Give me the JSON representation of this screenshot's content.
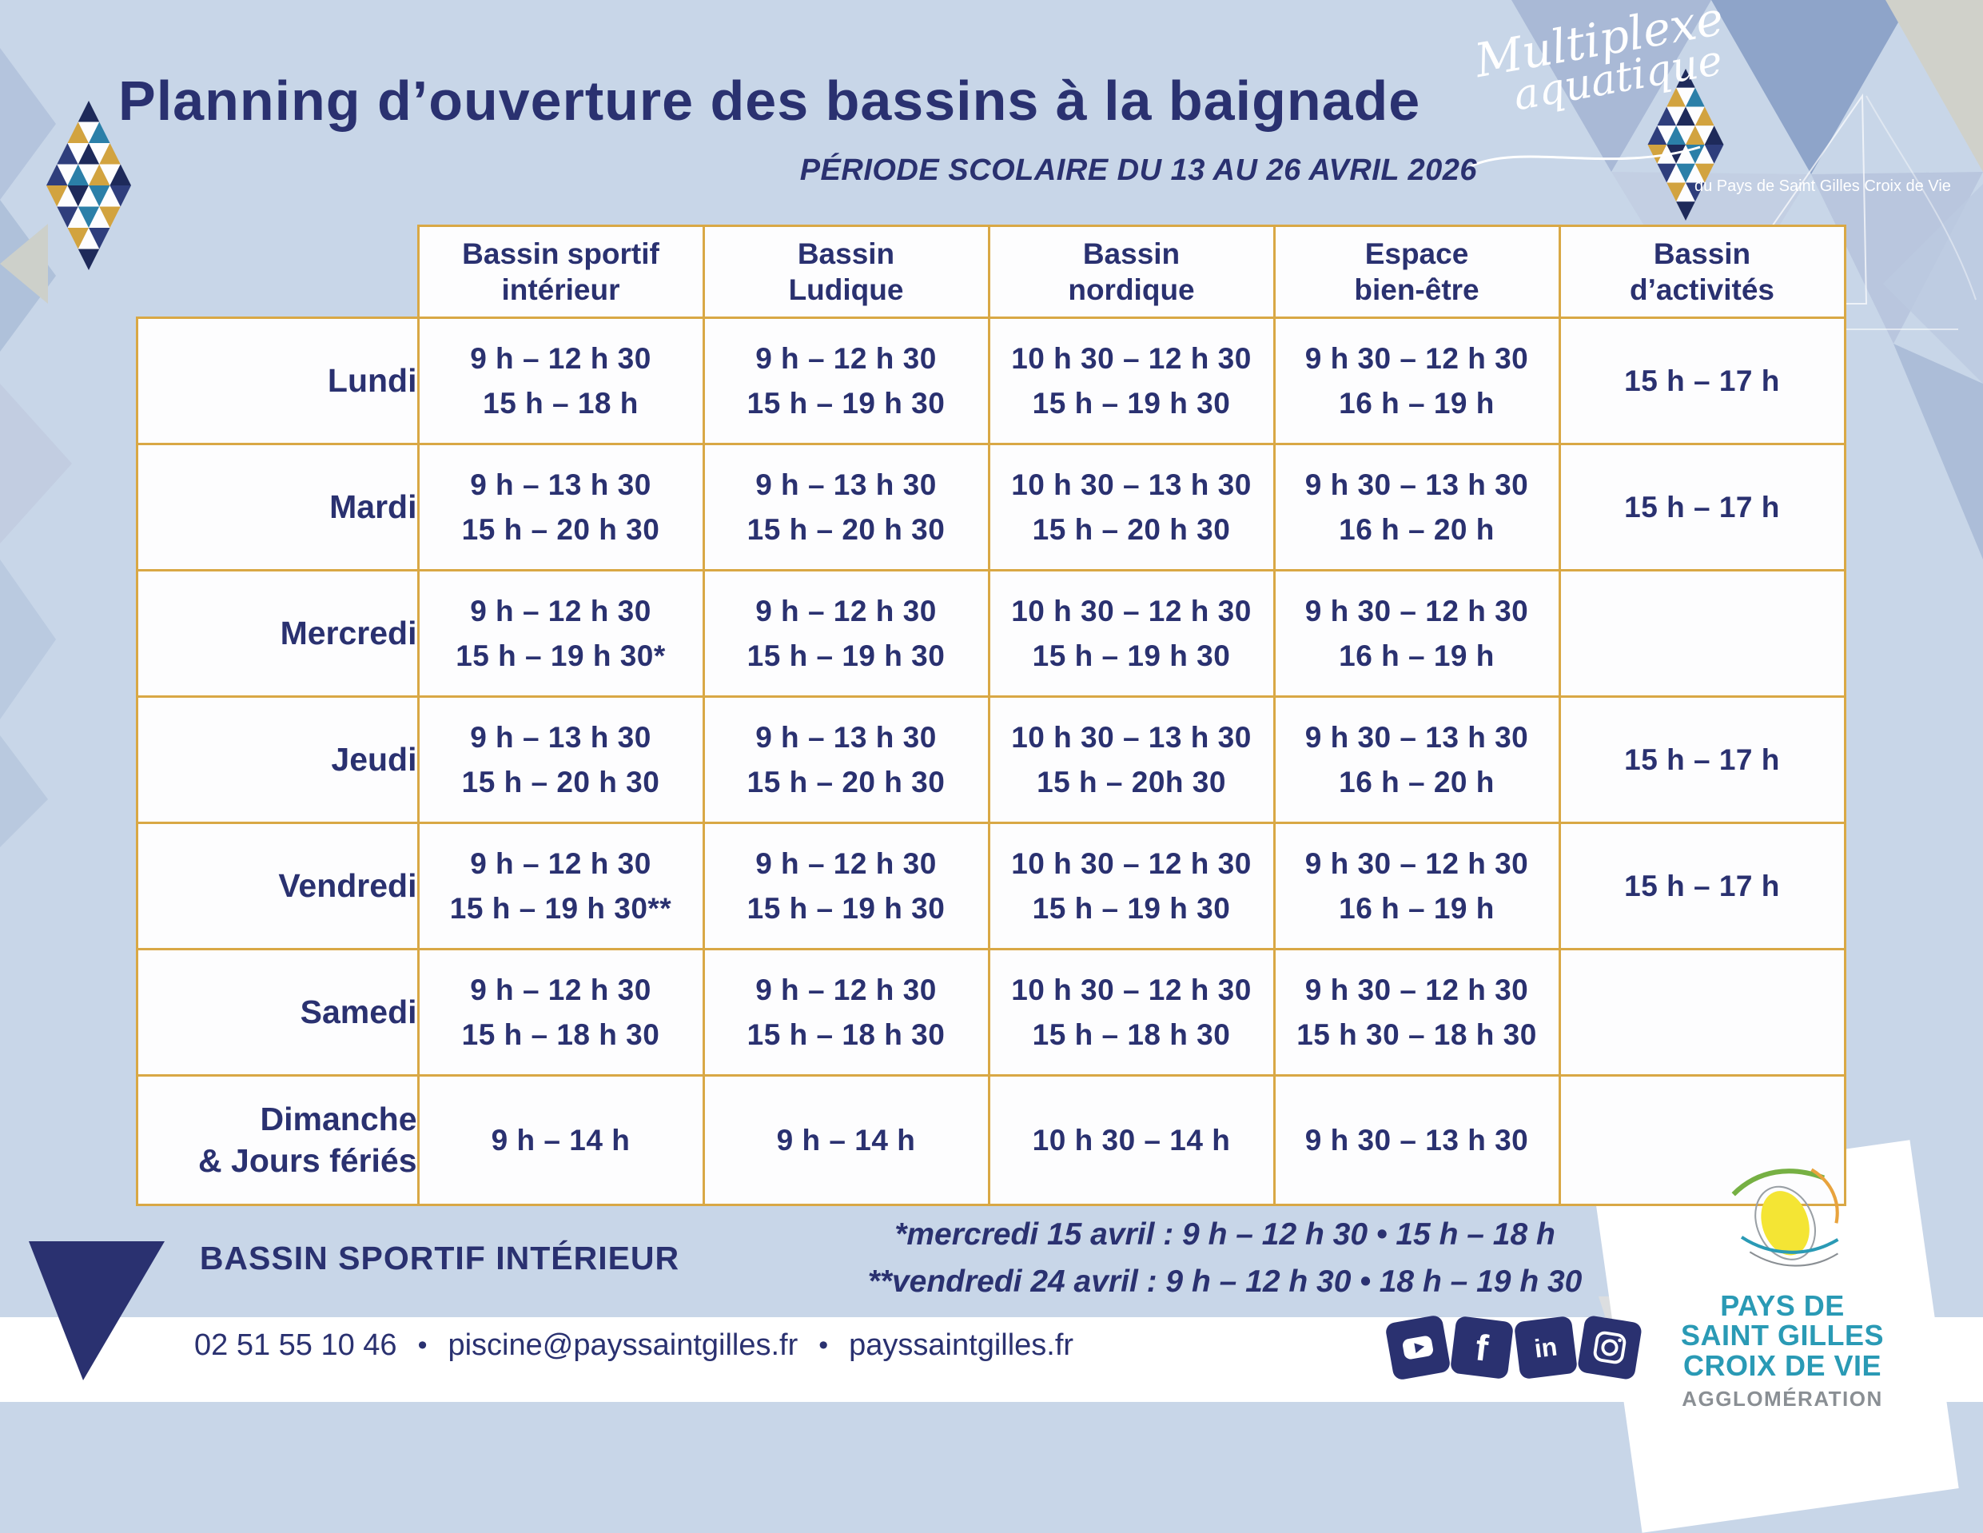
{
  "page": {
    "title": "Planning d’ouverture des bassins à la baignade",
    "subtitle": "PÉRIODE SCOLAIRE DU 13 AU 26 AVRIL 2026"
  },
  "brand": {
    "name_line1": "Multiplexe",
    "name_line2": "aquatique",
    "tagline": "du Pays de Saint Gilles Croix de Vie"
  },
  "table": {
    "columns": [
      [
        "Bassin sportif",
        "intérieur"
      ],
      [
        "Bassin",
        "Ludique"
      ],
      [
        "Bassin",
        "nordique"
      ],
      [
        "Espace",
        "bien-être"
      ],
      [
        "Bassin",
        "d’activités"
      ]
    ],
    "rows": [
      {
        "day": [
          "Lundi"
        ],
        "cells": [
          [
            "9 h – 12 h 30",
            "15 h – 18 h"
          ],
          [
            "9 h – 12 h 30",
            "15 h – 19 h 30"
          ],
          [
            "10 h 30 – 12 h 30",
            "15 h – 19 h 30"
          ],
          [
            "9 h 30 – 12 h 30",
            "16 h – 19 h"
          ],
          [
            "15 h – 17 h"
          ]
        ]
      },
      {
        "day": [
          "Mardi"
        ],
        "cells": [
          [
            "9 h – 13 h 30",
            "15 h – 20 h 30"
          ],
          [
            "9 h – 13 h 30",
            "15 h – 20 h 30"
          ],
          [
            "10 h 30 – 13 h 30",
            "15 h – 20 h 30"
          ],
          [
            "9 h 30 – 13 h 30",
            "16 h – 20 h"
          ],
          [
            "15 h – 17 h"
          ]
        ]
      },
      {
        "day": [
          "Mercredi"
        ],
        "cells": [
          [
            "9 h – 12 h 30",
            "15 h – 19 h 30*"
          ],
          [
            "9 h – 12 h 30",
            "15 h – 19 h 30"
          ],
          [
            "10 h 30 – 12 h 30",
            "15 h – 19 h 30"
          ],
          [
            "9 h 30 – 12 h 30",
            "16 h – 19 h"
          ],
          []
        ]
      },
      {
        "day": [
          "Jeudi"
        ],
        "cells": [
          [
            "9 h – 13 h 30",
            "15 h – 20 h 30"
          ],
          [
            "9 h – 13 h 30",
            "15 h – 20 h 30"
          ],
          [
            "10 h 30 – 13 h 30",
            "15 h – 20h 30"
          ],
          [
            "9 h 30 – 13 h 30",
            "16 h – 20 h"
          ],
          [
            "15 h – 17 h"
          ]
        ]
      },
      {
        "day": [
          "Vendredi"
        ],
        "cells": [
          [
            "9 h – 12 h 30",
            "15 h – 19 h 30**"
          ],
          [
            "9 h – 12 h 30",
            "15 h – 19 h 30"
          ],
          [
            "10 h 30 – 12 h 30",
            "15 h – 19 h 30"
          ],
          [
            "9 h 30 – 12 h 30",
            "16 h – 19 h"
          ],
          [
            "15 h – 17 h"
          ]
        ]
      },
      {
        "day": [
          "Samedi"
        ],
        "cells": [
          [
            "9 h – 12 h 30",
            "15 h – 18 h 30"
          ],
          [
            "9 h – 12 h 30",
            "15 h – 18 h 30"
          ],
          [
            "10 h 30 – 12 h 30",
            "15 h – 18 h 30"
          ],
          [
            "9 h 30 – 12 h 30",
            "15 h 30 – 18 h 30"
          ],
          []
        ]
      },
      {
        "day": [
          "Dimanche",
          "& Jours fériés"
        ],
        "cells": [
          [
            "9 h – 14 h"
          ],
          [
            "9 h – 14 h"
          ],
          [
            "10 h 30 – 14 h"
          ],
          [
            "9 h 30 – 13 h 30"
          ],
          []
        ]
      }
    ]
  },
  "notes": {
    "label": "BASSIN SPORTIF INTÉRIEUR",
    "lines": [
      "*mercredi 15 avril : 9 h – 12 h 30 • 15 h – 18 h",
      "**vendredi 24 avril : 9 h – 12 h 30 • 18 h – 19 h 30"
    ]
  },
  "contact": {
    "phone": "02 51 55 10 46",
    "separator": "•",
    "email": "piscine@payssaintgilles.fr",
    "website": "payssaintgilles.fr"
  },
  "social_icons": [
    "youtube-icon",
    "facebook-icon",
    "linkedin-icon",
    "instagram-icon"
  ],
  "agglo": {
    "line1": "PAYS DE",
    "line2": "SAINT GILLES",
    "line3": "CROIX DE VIE",
    "line4": "AGGLOMÉRATION"
  },
  "colors": {
    "navy": "#2a3170",
    "gold_border": "#d9a845",
    "background": "#c8d6e8",
    "cell_white": "#fdfdfe",
    "logo_teal": "#2a9ab5",
    "logo_gray": "#8a8f94",
    "mosaic_navy": "#1e2a5a",
    "mosaic_gold": "#d2a33f",
    "mosaic_teal": "#2b7fa8"
  }
}
